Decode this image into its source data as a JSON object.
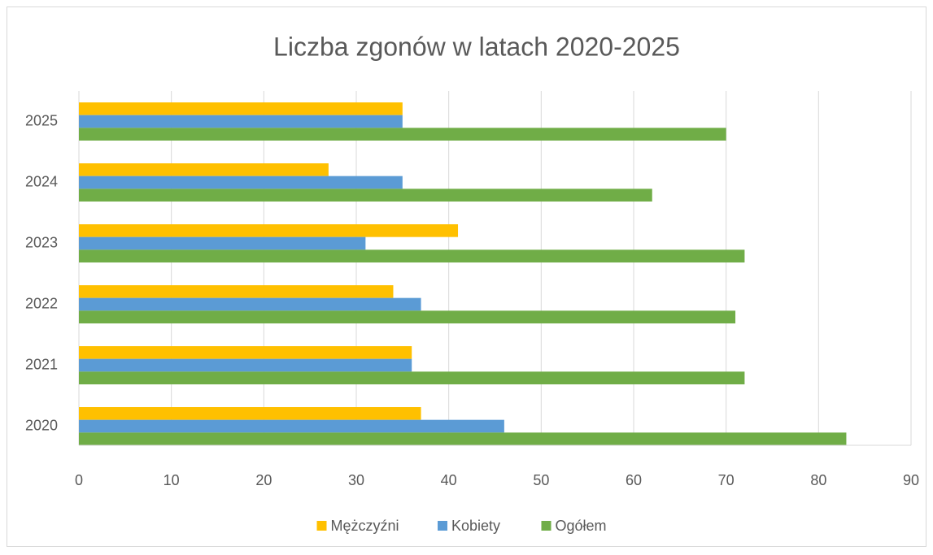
{
  "chart_data": {
    "type": "barh",
    "title": "Liczba zgonów w latach 2020-2025",
    "categories": [
      "2020",
      "2021",
      "2022",
      "2023",
      "2024",
      "2025"
    ],
    "series": [
      {
        "name": "Mężczyźni",
        "color": "#FFC000",
        "values": [
          37,
          36,
          34,
          41,
          27,
          35
        ]
      },
      {
        "name": "Kobiety",
        "color": "#5B9BD5",
        "values": [
          46,
          36,
          37,
          31,
          35,
          35
        ]
      },
      {
        "name": "Ogółem",
        "color": "#70AD47",
        "values": [
          83,
          72,
          71,
          72,
          62,
          70
        ]
      }
    ],
    "xlim": [
      0,
      90
    ],
    "xticks": [
      0,
      10,
      20,
      30,
      40,
      50,
      60,
      70,
      80,
      90
    ],
    "grid": true,
    "legend": "bottom"
  }
}
